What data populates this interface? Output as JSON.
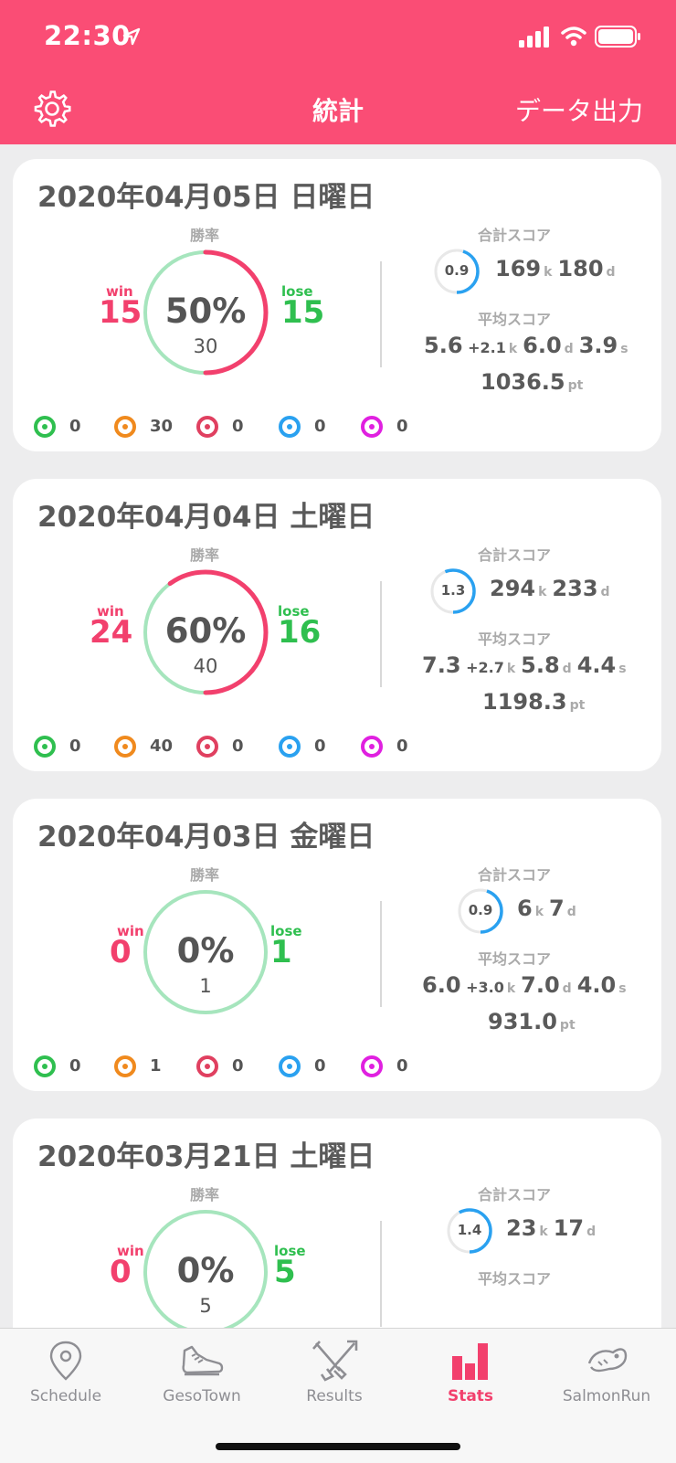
{
  "status": {
    "time": "22:30"
  },
  "nav": {
    "title": "統計",
    "export_label": "データ出力",
    "settings_icon": "gear-icon"
  },
  "labels": {
    "winrate": "勝率",
    "total_score": "合計スコア",
    "avg_score": "平均スコア",
    "win": "win",
    "lose": "lose"
  },
  "colors": {
    "accent": "#fa4d75",
    "win": "#f2406d",
    "lose": "#2fbf4f",
    "ring_bg": "#a6e5bd",
    "mini_ring": "#2aa1f0"
  },
  "days": [
    {
      "date": "2020年04月05日 日曜日",
      "win": "15",
      "lose": "15",
      "winrate": 0.5,
      "pct": "50%",
      "total": "30",
      "ratio": "0.9",
      "ratio_fill": 0.45,
      "kills": "169",
      "deaths": "180",
      "avg_k": "5.6",
      "avg_assist": "+2.1",
      "avg_d": "6.0",
      "avg_s": "3.9",
      "avg_pt": "1036.5",
      "weapons": [
        "0",
        "30",
        "0",
        "0",
        "0"
      ]
    },
    {
      "date": "2020年04月04日 土曜日",
      "win": "24",
      "lose": "16",
      "winrate": 0.6,
      "pct": "60%",
      "total": "40",
      "ratio": "1.3",
      "ratio_fill": 0.56,
      "kills": "294",
      "deaths": "233",
      "avg_k": "7.3",
      "avg_assist": "+2.7",
      "avg_d": "5.8",
      "avg_s": "4.4",
      "avg_pt": "1198.3",
      "weapons": [
        "0",
        "40",
        "0",
        "0",
        "0"
      ]
    },
    {
      "date": "2020年04月03日 金曜日",
      "win": "0",
      "lose": "1",
      "winrate": 0,
      "pct": "0%",
      "total": "1",
      "ratio": "0.9",
      "ratio_fill": 0.45,
      "kills": "6",
      "deaths": "7",
      "avg_k": "6.0",
      "avg_assist": "+3.0",
      "avg_d": "7.0",
      "avg_s": "4.0",
      "avg_pt": "931.0",
      "weapons": [
        "0",
        "1",
        "0",
        "0",
        "0"
      ]
    },
    {
      "date": "2020年03月21日 土曜日",
      "win": "0",
      "lose": "5",
      "winrate": 0,
      "pct": "0%",
      "total": "5",
      "ratio": "1.4",
      "ratio_fill": 0.58,
      "kills": "23",
      "deaths": "17"
    }
  ],
  "units": {
    "k": "k",
    "d": "d",
    "s": "s",
    "pt": "pt"
  },
  "tabs": [
    {
      "label": "Schedule",
      "icon": "map-pin-icon"
    },
    {
      "label": "GesoTown",
      "icon": "shoe-icon"
    },
    {
      "label": "Results",
      "icon": "crossed-weapons-icon"
    },
    {
      "label": "Stats",
      "icon": "bar-chart-icon",
      "active": true
    },
    {
      "label": "SalmonRun",
      "icon": "salmon-icon"
    }
  ]
}
